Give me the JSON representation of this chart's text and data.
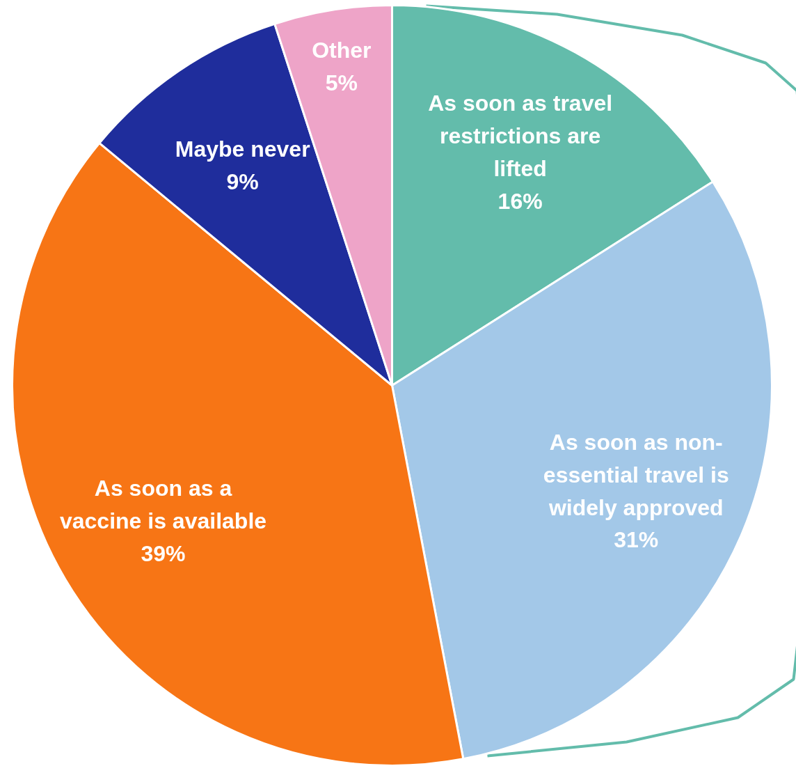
{
  "chart_data": {
    "type": "pie",
    "categories": [
      "As soon as travel\nrestrictions are\nlifted",
      "As soon as non-\nessential travel is\nwidely approved",
      "As soon as a\nvaccine is available",
      "Maybe never",
      "Other"
    ],
    "values": [
      16,
      31,
      39,
      9,
      5
    ],
    "colors": [
      "#63bcab",
      "#a3c8e8",
      "#f77515",
      "#1f2d9c",
      "#eea4c8"
    ],
    "value_labels": [
      "16%",
      "31%",
      "39%",
      "9%",
      "5%"
    ]
  }
}
